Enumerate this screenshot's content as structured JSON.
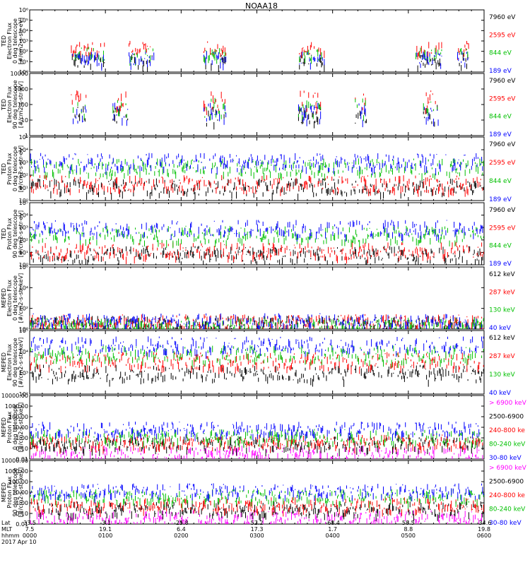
{
  "chart_data": {
    "type": "scatter",
    "title": "NOAA18",
    "time_axis": {
      "hhmm": [
        "0000",
        "0100",
        "0200",
        "0300",
        "0400",
        "0500",
        "0600"
      ],
      "lat": [
        "33.5",
        "-3.1",
        "-25.8",
        "52.2",
        "-68.4",
        "58.5",
        "-34.6"
      ],
      "mlt": [
        "7.5",
        "19.1",
        "6.4",
        "17.3",
        "1.7",
        "8.8",
        "19.8"
      ],
      "row_labels": [
        "Lat",
        "MLT",
        "hhmm"
      ],
      "date": "2017 Apr 10"
    },
    "panels": [
      {
        "ylabel_lines": [
          "TED",
          "Electron Flux",
          "0 deg telescope",
          "[#/cm2-s-str-eV]"
        ],
        "ylim": [
          1,
          1000000
        ],
        "scale": "log",
        "tick_labels": [
          "10⁰",
          "10¹",
          "10²",
          "10³",
          "10⁴",
          "10⁵",
          "10⁶"
        ],
        "legend": [
          {
            "label": "7960 eV",
            "color": "#000000"
          },
          {
            "label": "2595 eV",
            "color": "#ff0000"
          },
          {
            "label": "844 eV",
            "color": "#00c000"
          },
          {
            "label": "189 eV",
            "color": "#0000ff"
          }
        ],
        "activity_hours": [
          [
            0.55,
            1.0
          ],
          [
            1.3,
            1.65
          ],
          [
            2.3,
            2.6
          ],
          [
            3.55,
            3.9
          ],
          [
            5.1,
            5.45
          ],
          [
            5.65,
            5.8
          ]
        ],
        "series_levels": {
          "black": 10,
          "red": 150,
          "green": 40,
          "blue": 15
        }
      },
      {
        "ylabel_lines": [
          "TED",
          "Electron Flux",
          "90 deg telescope",
          "[#/cm2-s-str-eV]"
        ],
        "ylim": [
          1,
          10000
        ],
        "scale": "log",
        "tick_labels": [
          "1",
          "10",
          "100",
          "1000",
          "10000"
        ],
        "legend": [
          {
            "label": "7960 eV",
            "color": "#000000"
          },
          {
            "label": "2595 eV",
            "color": "#ff0000"
          },
          {
            "label": "844 eV",
            "color": "#00c000"
          },
          {
            "label": "189 eV",
            "color": "#0000ff"
          }
        ],
        "activity_hours": [
          [
            0.55,
            0.75
          ],
          [
            1.1,
            1.3
          ],
          [
            2.3,
            2.6
          ],
          [
            3.55,
            3.85
          ],
          [
            4.3,
            4.45
          ],
          [
            5.2,
            5.4
          ]
        ],
        "series_levels": {
          "black": 15,
          "red": 120,
          "green": 40,
          "blue": 20
        }
      },
      {
        "ylabel_lines": [
          "TED",
          "Proton Flux",
          "0 deg telescope",
          "[#/cm2-s-str-eV]"
        ],
        "ylim": [
          1,
          100000
        ],
        "scale": "log",
        "tick_labels": [
          "10⁰",
          "10¹",
          "10²",
          "10³",
          "10⁴",
          "10⁵"
        ],
        "legend": [
          {
            "label": "7960 eV",
            "color": "#000000"
          },
          {
            "label": "2595 eV",
            "color": "#ff0000"
          },
          {
            "label": "844 eV",
            "color": "#00c000"
          },
          {
            "label": "189 eV",
            "color": "#0000ff"
          }
        ],
        "activity_hours": [
          [
            0.0,
            6.0
          ]
        ],
        "series_levels": {
          "black": 8,
          "red": 15,
          "green": 300,
          "blue": 800
        }
      },
      {
        "ylabel_lines": [
          "TED",
          "Proton Flux",
          "90 deg telescope",
          "[#/cm2-s-str-eV]"
        ],
        "ylim": [
          1,
          100000
        ],
        "scale": "log",
        "tick_labels": [
          "10⁰",
          "10¹",
          "10²",
          "10³",
          "10⁴",
          "10⁵"
        ],
        "legend": [
          {
            "label": "7960 eV",
            "color": "#000000"
          },
          {
            "label": "2595 eV",
            "color": "#ff0000"
          },
          {
            "label": "844 eV",
            "color": "#00c000"
          },
          {
            "label": "189 eV",
            "color": "#0000ff"
          }
        ],
        "activity_hours": [
          [
            0.0,
            6.0
          ]
        ],
        "series_levels": {
          "black": 5,
          "red": 10,
          "green": 200,
          "blue": 600
        }
      },
      {
        "ylabel_lines": [
          "MEPED",
          "Electron Flux",
          "0 deg telescope",
          "[#/cm2-s-str-keV]"
        ],
        "ylim": [
          1,
          1000000
        ],
        "scale": "log",
        "tick_labels": [
          "10⁰",
          "10²",
          "10⁴",
          "10⁶"
        ],
        "legend": [
          {
            "label": "612 keV",
            "color": "#000000"
          },
          {
            "label": "287 keV",
            "color": "#ff0000"
          },
          {
            "label": "130 keV",
            "color": "#00c000"
          },
          {
            "label": "40 keV",
            "color": "#0000ff"
          }
        ],
        "activity_hours": [
          [
            0.0,
            6.0
          ]
        ],
        "series_levels": {
          "black": 3,
          "red": 4,
          "green": 2,
          "blue": 5
        }
      },
      {
        "ylabel_lines": [
          "MEPED",
          "Electron Flux",
          "90 deg telescope",
          "[#/cm2-s-str-keV]"
        ],
        "ylim": [
          10,
          1000000
        ],
        "scale": "log",
        "tick_labels": [
          "10²",
          "10³",
          "10⁴",
          "10⁵"
        ],
        "legend": [
          {
            "label": "612 keV",
            "color": "#000000"
          },
          {
            "label": "287 keV",
            "color": "#ff0000"
          },
          {
            "label": "130 keV",
            "color": "#00c000"
          },
          {
            "label": "40 keV",
            "color": "#0000ff"
          }
        ],
        "activity_hours": [
          [
            0.0,
            6.0
          ]
        ],
        "series_levels": {
          "black": 300,
          "red": 3000,
          "green": 10000,
          "blue": 50000
        }
      },
      {
        "ylabel_lines": [
          "MEPED",
          "Proton Flux",
          "0 deg telescope",
          "[#/cm2-s-str-keV]"
        ],
        "ylim": [
          0.01,
          10000
        ],
        "scale": "log",
        "tick_labels": [
          "0.01",
          "0.10",
          "1.00",
          "10.00",
          "100.00",
          "1000.00",
          "10000.00"
        ],
        "legend": [
          {
            "label": "> 6900 keV",
            "color": "#ff00ff"
          },
          {
            "label": "2500-6900",
            "color": "#000000"
          },
          {
            "label": "240-800 ke",
            "color": "#ff0000"
          },
          {
            "label": "80-240 keV",
            "color": "#00c000"
          },
          {
            "label": "30-80 keV",
            "color": "#0000ff"
          }
        ],
        "activity_hours": [
          [
            0.0,
            6.0
          ]
        ],
        "series_levels": {
          "magenta": 0.03,
          "black": 0.2,
          "red": 0.3,
          "green": 1.0,
          "blue": 5.0
        }
      },
      {
        "ylabel_lines": [
          "MEPED",
          "Proton Flux",
          "90 deg telescope",
          "[#/cm2-s-str-keV]"
        ],
        "ylim": [
          0.01,
          10000
        ],
        "scale": "log",
        "tick_labels": [
          "0.01",
          "0.10",
          "1.00",
          "10.00",
          "100.00",
          "1000.00",
          "10000.00"
        ],
        "legend": [
          {
            "label": "> 6900 keV",
            "color": "#ff00ff"
          },
          {
            "label": "2500-6900",
            "color": "#000000"
          },
          {
            "label": "240-800 ke",
            "color": "#ff0000"
          },
          {
            "label": "80-240 keV",
            "color": "#00c000"
          },
          {
            "label": "30-80 keV",
            "color": "#0000ff"
          }
        ],
        "activity_hours": [
          [
            0.0,
            6.0
          ]
        ],
        "series_levels": {
          "magenta": 0.03,
          "black": 0.2,
          "red": 0.5,
          "green": 3.0,
          "blue": 10.0
        }
      }
    ]
  }
}
